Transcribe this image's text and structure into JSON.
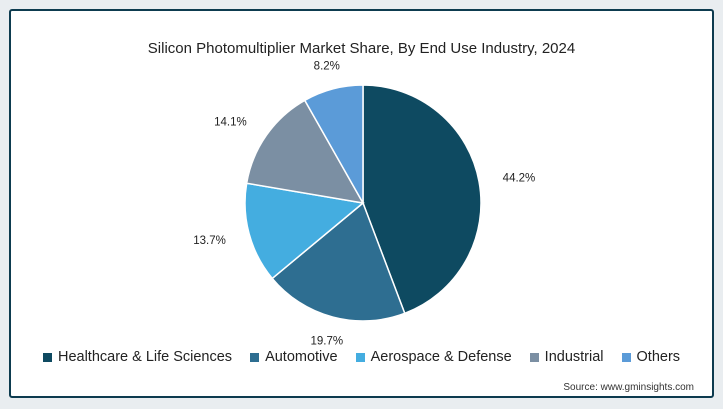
{
  "chart_data": {
    "type": "pie",
    "title": "Silicon Photomultiplier Market Share, By End Use Industry, 2024",
    "categories": [
      "Healthcare & Life Sciences",
      "Automotive",
      "Aerospace & Defense",
      "Industrial",
      "Others"
    ],
    "values": [
      44.2,
      19.7,
      13.7,
      14.1,
      8.2
    ],
    "value_labels": [
      "44.2%",
      "19.7%",
      "13.7%",
      "14.1%",
      "8.2%"
    ],
    "colors": [
      "#0e4a61",
      "#2e6e91",
      "#44ade0",
      "#7b8fa3",
      "#5b9bd8"
    ],
    "legend": "bottom",
    "source": "Source: www.gminsights.com"
  }
}
